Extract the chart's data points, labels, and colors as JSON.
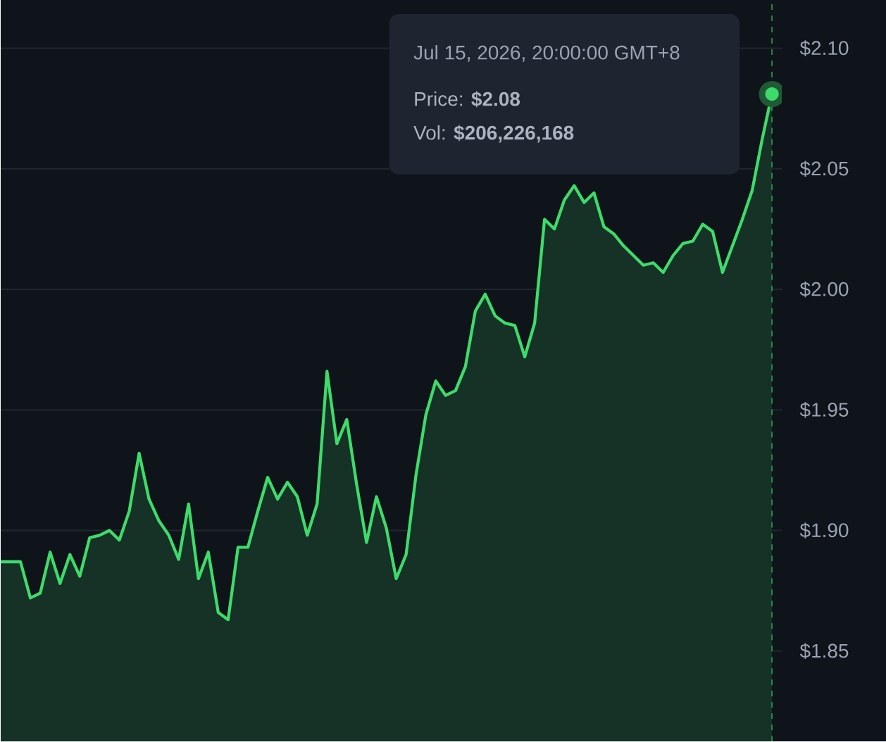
{
  "chart_data": {
    "type": "area",
    "categories": [
      null,
      null,
      null,
      null,
      null,
      null,
      null,
      null,
      null,
      null,
      null,
      null,
      null,
      null,
      null,
      null,
      null,
      null,
      null,
      null,
      null,
      null,
      null,
      null,
      null,
      null,
      null,
      null,
      null,
      null,
      null,
      null,
      null,
      null,
      null,
      null,
      null,
      null,
      null,
      null,
      null,
      null,
      null,
      null,
      null,
      null,
      null,
      null,
      null,
      null,
      null,
      null,
      null,
      null,
      null,
      null,
      null,
      null,
      null,
      null,
      null,
      null,
      null,
      null,
      null,
      null,
      null,
      null,
      null,
      null,
      null,
      null,
      null,
      null,
      null,
      null,
      null,
      null,
      null
    ],
    "series": [
      {
        "color": "#3ddc6a",
        "values": [
          1.887,
          1.887,
          1.887,
          1.872,
          1.874,
          1.891,
          1.878,
          1.89,
          1.881,
          1.897,
          1.898,
          1.9,
          1.896,
          1.908,
          1.932,
          1.913,
          1.904,
          1.898,
          1.888,
          1.911,
          1.88,
          1.891,
          1.866,
          1.863,
          1.893,
          1.893,
          1.908,
          1.922,
          1.913,
          1.92,
          1.914,
          1.898,
          1.911,
          1.966,
          1.936,
          1.946,
          1.919,
          1.895,
          1.914,
          1.901,
          1.88,
          1.89,
          1.923,
          1.948,
          1.962,
          1.956,
          1.958,
          1.968,
          1.991,
          1.998,
          1.989,
          1.986,
          1.985,
          1.972,
          1.986,
          2.029,
          2.025,
          2.037,
          2.043,
          2.036,
          2.04,
          2.026,
          2.023,
          2.018,
          2.014,
          2.01,
          2.011,
          2.007,
          2.014,
          2.019,
          2.02,
          2.027,
          2.024,
          2.007,
          2.018,
          2.029,
          2.041,
          2.062,
          2.081
        ]
      }
    ],
    "ylim": [
      1.8125,
      2.12
    ],
    "yticks": [
      {
        "value": 1.85,
        "label": "$1.85"
      },
      {
        "value": 1.9,
        "label": "$1.90"
      },
      {
        "value": 1.95,
        "label": "$1.95"
      },
      {
        "value": 2.0,
        "label": "$2.00"
      },
      {
        "value": 2.05,
        "label": "$2.05"
      },
      {
        "value": 2.1,
        "label": "$2.10"
      }
    ],
    "grid": "y",
    "tick_labels": "y",
    "marker": "none",
    "annotations": [
      "Jul 15, 2026, 20:00:00 GMT+8",
      "Price: **$2.08**",
      "Vol: **$206,226,168**"
    ]
  }
}
